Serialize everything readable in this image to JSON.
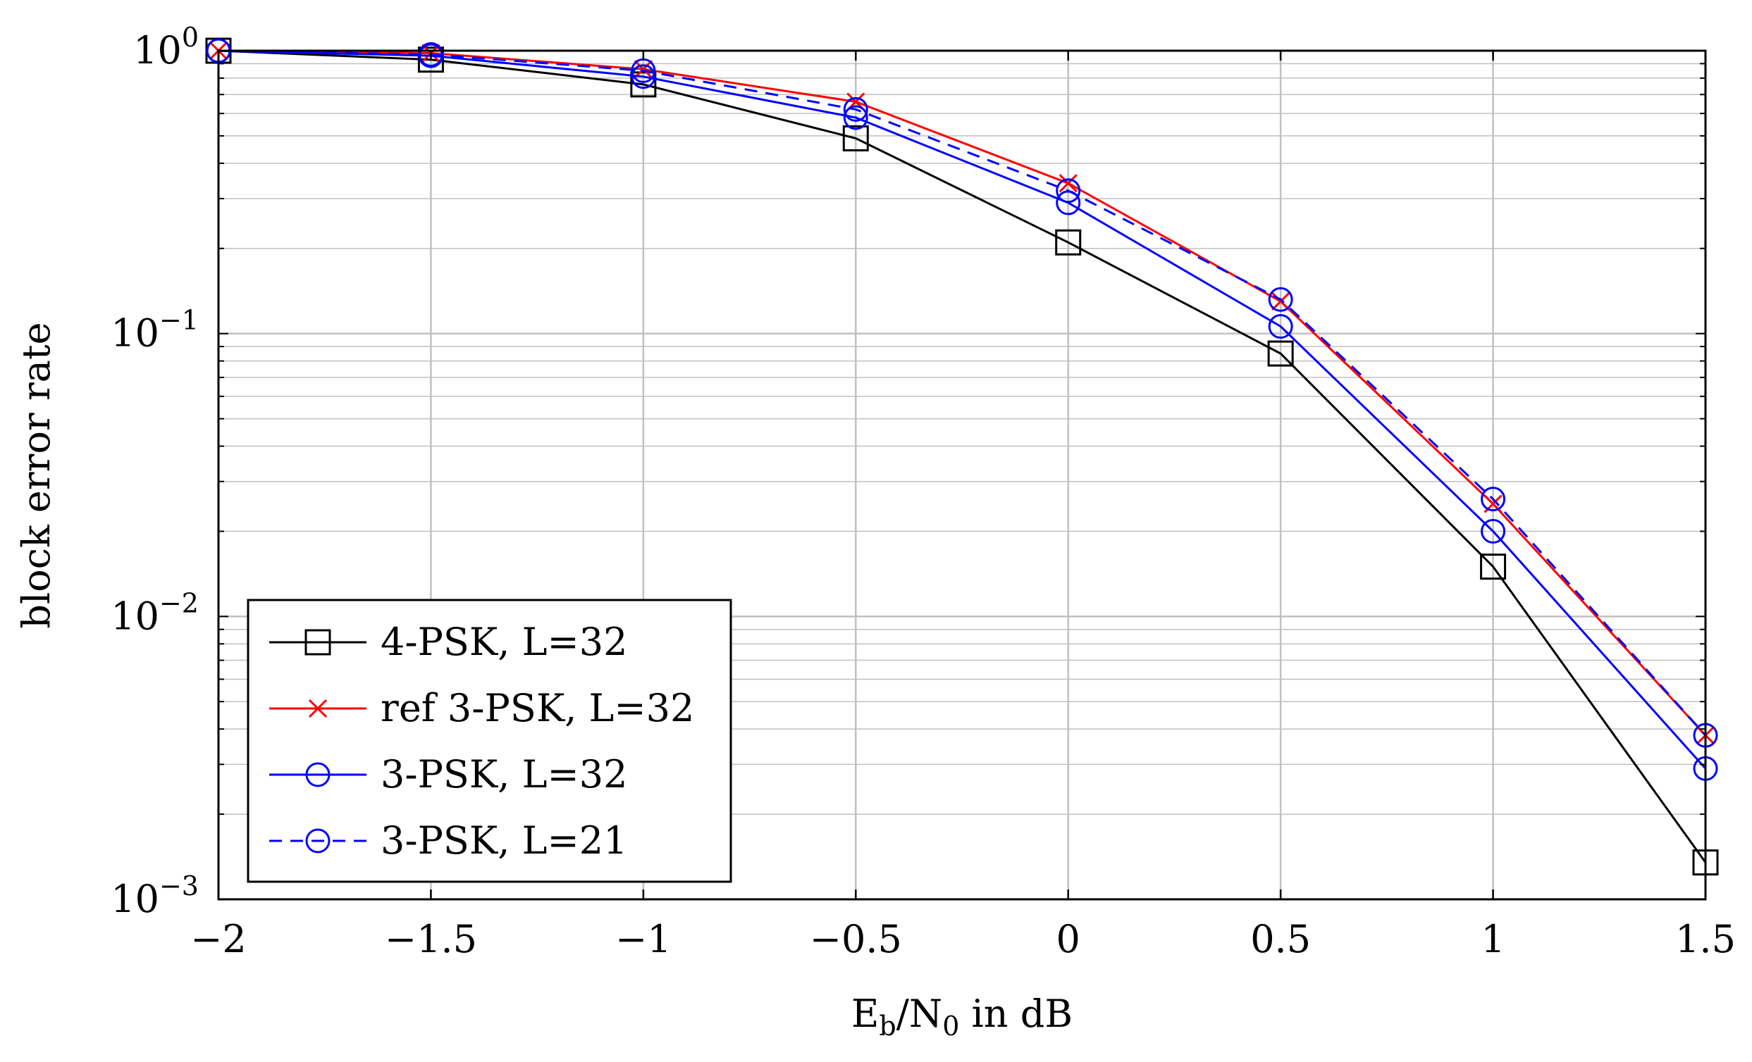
{
  "chart_data": {
    "type": "line",
    "title": "",
    "xlabel": "E_b/N_0 in dB",
    "ylabel": "block error rate",
    "xscale": "linear",
    "yscale": "log",
    "xlim": [
      -2,
      1.5
    ],
    "ylim": [
      0.001,
      1
    ],
    "grid": true,
    "legend_position": "bottom-left",
    "x": [
      -2,
      -1.5,
      -1,
      -0.5,
      0,
      0.5,
      1,
      1.5
    ],
    "x_tick_labels": [
      "−2",
      "−1.5",
      "−1",
      "−0.5",
      "0",
      "0.5",
      "1",
      "1.5"
    ],
    "y_tick_labels": [
      {
        "value": 1,
        "base": "10",
        "exp": "0"
      },
      {
        "value": 0.1,
        "base": "10",
        "exp": "−1"
      },
      {
        "value": 0.01,
        "base": "10",
        "exp": "−2"
      },
      {
        "value": 0.001,
        "base": "10",
        "exp": "−3"
      }
    ],
    "series": [
      {
        "name": "4-PSK, L=32",
        "color": "#000000",
        "marker": "square",
        "dash": "solid",
        "values": [
          1.0,
          0.93,
          0.76,
          0.49,
          0.21,
          0.085,
          0.015,
          0.00135
        ]
      },
      {
        "name": "ref 3-PSK, L=32",
        "color": "#ff0000",
        "marker": "x",
        "dash": "solid",
        "values": [
          1.0,
          0.98,
          0.86,
          0.66,
          0.34,
          0.13,
          0.025,
          0.0038
        ]
      },
      {
        "name": "3-PSK, L=32",
        "color": "#0000ff",
        "marker": "circle",
        "dash": "solid",
        "values": [
          1.0,
          0.96,
          0.81,
          0.58,
          0.29,
          0.106,
          0.02,
          0.0029
        ]
      },
      {
        "name": "3-PSK, L=21",
        "color": "#0000ff",
        "marker": "circle",
        "dash": "dashed",
        "values": [
          1.0,
          0.97,
          0.85,
          0.62,
          0.32,
          0.132,
          0.026,
          0.0038
        ]
      }
    ]
  }
}
